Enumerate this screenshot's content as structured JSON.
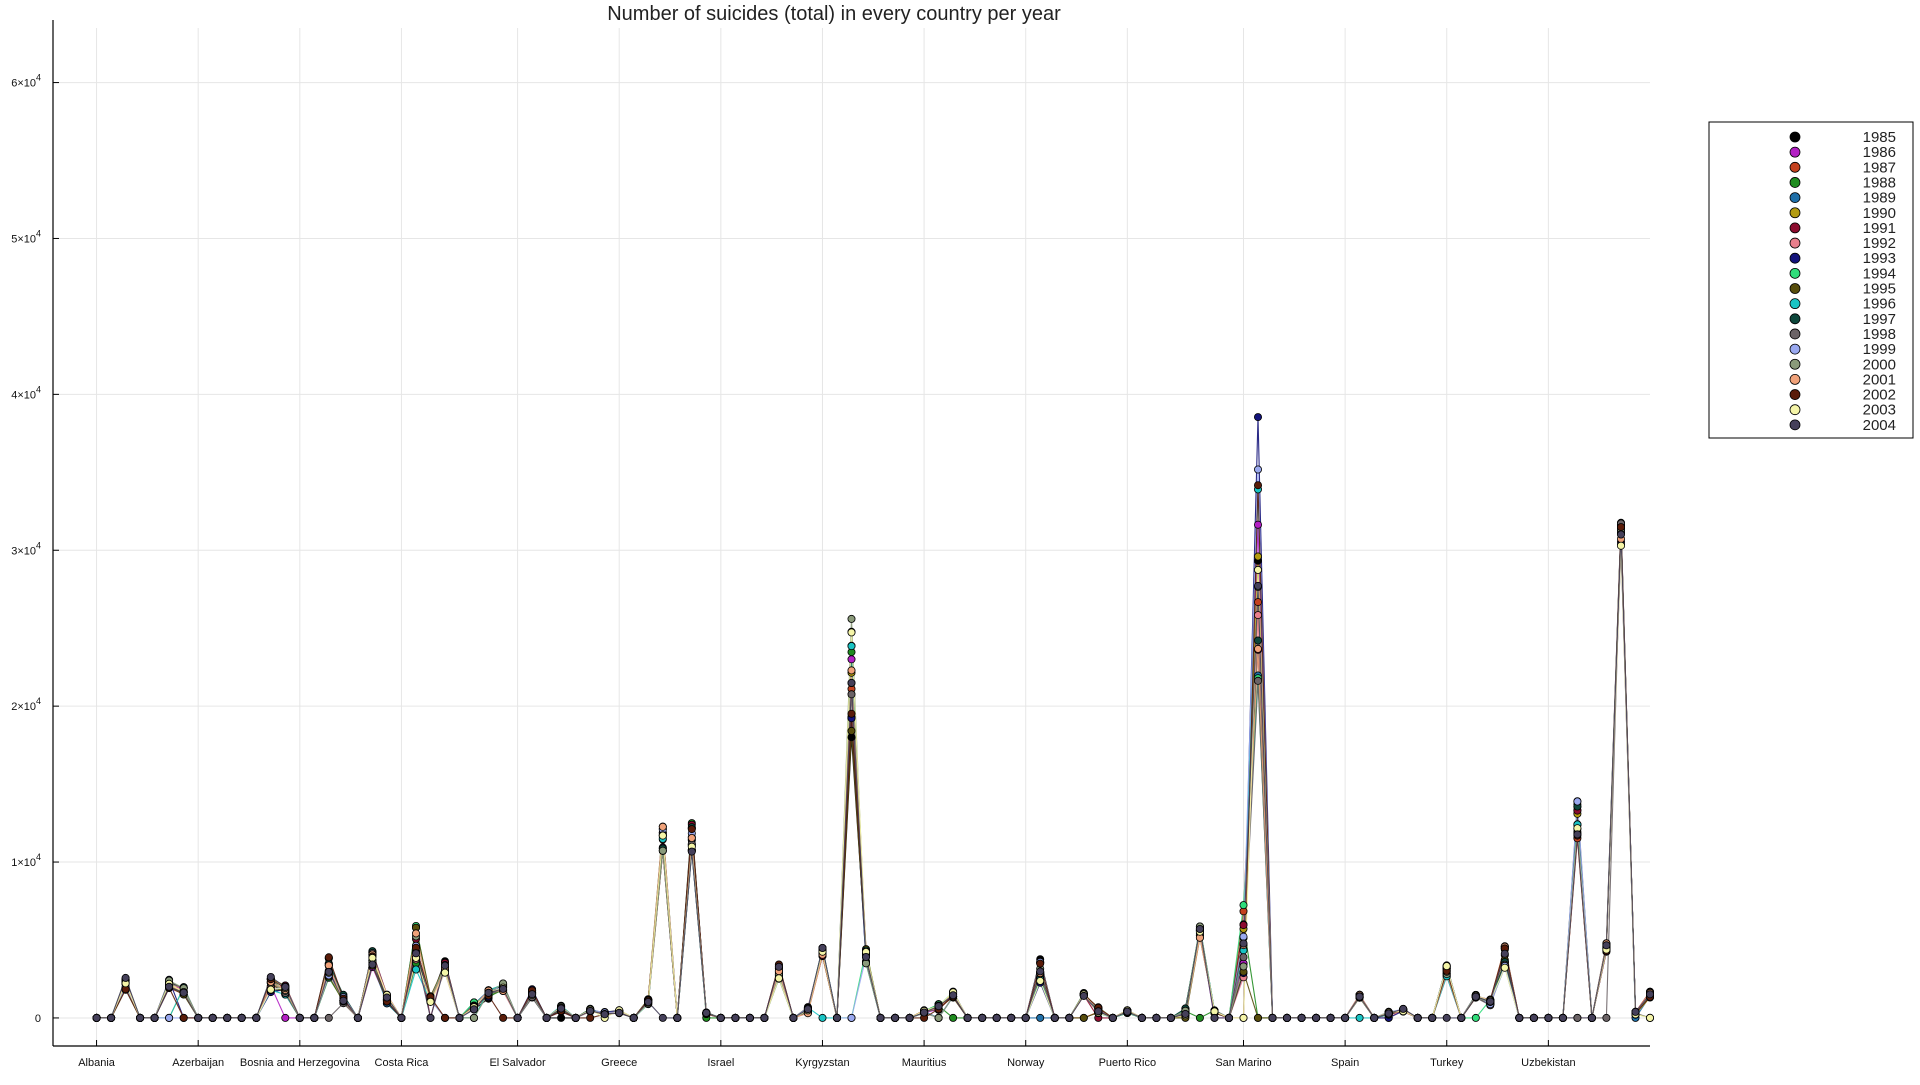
{
  "chart_data": {
    "type": "line",
    "title": "Number of suicides (total) in every country per year",
    "xlabel": "",
    "ylabel": "",
    "x_tick_labels": [
      "Albania",
      "Azerbaijan",
      "Bosnia and Herzegovina",
      "Costa Rica",
      "El Salvador",
      "Greece",
      "Israel",
      "Kyrgyzstan",
      "Mauritius",
      "Norway",
      "Puerto Rico",
      "San Marino",
      "Spain",
      "Turkey",
      "Uzbekistan"
    ],
    "x_tick_positions": [
      1,
      8,
      15,
      22,
      30,
      37,
      44,
      51,
      58,
      65,
      72,
      80,
      87,
      94,
      101
    ],
    "xlim": [
      -2,
      108
    ],
    "y_tick_values": [
      0,
      10000,
      20000,
      30000,
      40000,
      50000,
      60000
    ],
    "y_tick_labels": [
      {
        "mant": "0",
        "exp": ""
      },
      {
        "mant": "1×10",
        "exp": "4"
      },
      {
        "mant": "2×10",
        "exp": "4"
      },
      {
        "mant": "3×10",
        "exp": "4"
      },
      {
        "mant": "4×10",
        "exp": "4"
      },
      {
        "mant": "5×10",
        "exp": "4"
      },
      {
        "mant": "6×10",
        "exp": "4"
      }
    ],
    "ylim": [
      -1800,
      63500
    ],
    "grid": true,
    "legend_position": "right-top",
    "years": [
      "1985",
      "1986",
      "1987",
      "1988",
      "1989",
      "1990",
      "1991",
      "1992",
      "1993",
      "1994",
      "1995",
      "1996",
      "1997",
      "1998",
      "1999",
      "2000",
      "2001",
      "2002",
      "2003",
      "2004"
    ],
    "colors": [
      "#000000",
      "#b31fc4",
      "#c4421f",
      "#1f8c1f",
      "#1f6fa8",
      "#b39b10",
      "#8c0c2e",
      "#e87f8c",
      "#13137a",
      "#30dd7a",
      "#574d0c",
      "#19c4c4",
      "#0d473b",
      "#6b6366",
      "#9aa9f0",
      "#8a9a7a",
      "#f0a27a",
      "#5a1c09",
      "#f5f5a8",
      "#45405a"
    ],
    "base": [
      0,
      0,
      2200,
      0,
      0,
      2200,
      1700,
      0,
      0,
      0,
      0,
      0,
      2200,
      1800,
      0,
      0,
      3200,
      1200,
      0,
      3800,
      1200,
      0,
      4500,
      1200,
      3300,
      0,
      800,
      1500,
      2000,
      0,
      1600,
      0,
      600,
      0,
      500,
      300,
      400,
      0,
      1000,
      11500,
      0,
      11500,
      300,
      0,
      0,
      0,
      0,
      3000,
      0,
      500,
      4200,
      0,
      22000,
      4000,
      0,
      0,
      0,
      400,
      700,
      1500,
      0,
      0,
      0,
      0,
      0,
      3000,
      0,
      0,
      1500,
      500,
      0,
      400,
      0,
      0,
      0,
      400,
      5500,
      400,
      0,
      5000,
      30000,
      0,
      0,
      0,
      0,
      0,
      0,
      1400,
      0,
      300,
      500,
      0,
      0,
      3000,
      0,
      1400,
      1000,
      3800,
      0,
      0,
      0,
      0,
      12500,
      0,
      4500,
      31000,
      300,
      1500
    ],
    "spread": [
      0,
      0,
      400,
      0,
      0,
      300,
      300,
      0,
      0,
      0,
      0,
      0,
      600,
      300,
      0,
      0,
      800,
      300,
      0,
      600,
      300,
      0,
      1500,
      200,
      400,
      0,
      300,
      300,
      300,
      0,
      300,
      0,
      200,
      0,
      100,
      100,
      100,
      0,
      200,
      800,
      0,
      1000,
      50,
      0,
      0,
      0,
      0,
      500,
      0,
      200,
      300,
      0,
      4500,
      500,
      0,
      0,
      0,
      100,
      200,
      200,
      0,
      0,
      0,
      0,
      0,
      800,
      0,
      0,
      100,
      200,
      0,
      100,
      0,
      0,
      0,
      300,
      400,
      100,
      0,
      3000,
      9000,
      0,
      0,
      0,
      0,
      0,
      0,
      100,
      0,
      100,
      100,
      0,
      0,
      400,
      0,
      100,
      200,
      800,
      0,
      0,
      0,
      0,
      1500,
      0,
      300,
      800,
      100,
      200
    ]
  }
}
